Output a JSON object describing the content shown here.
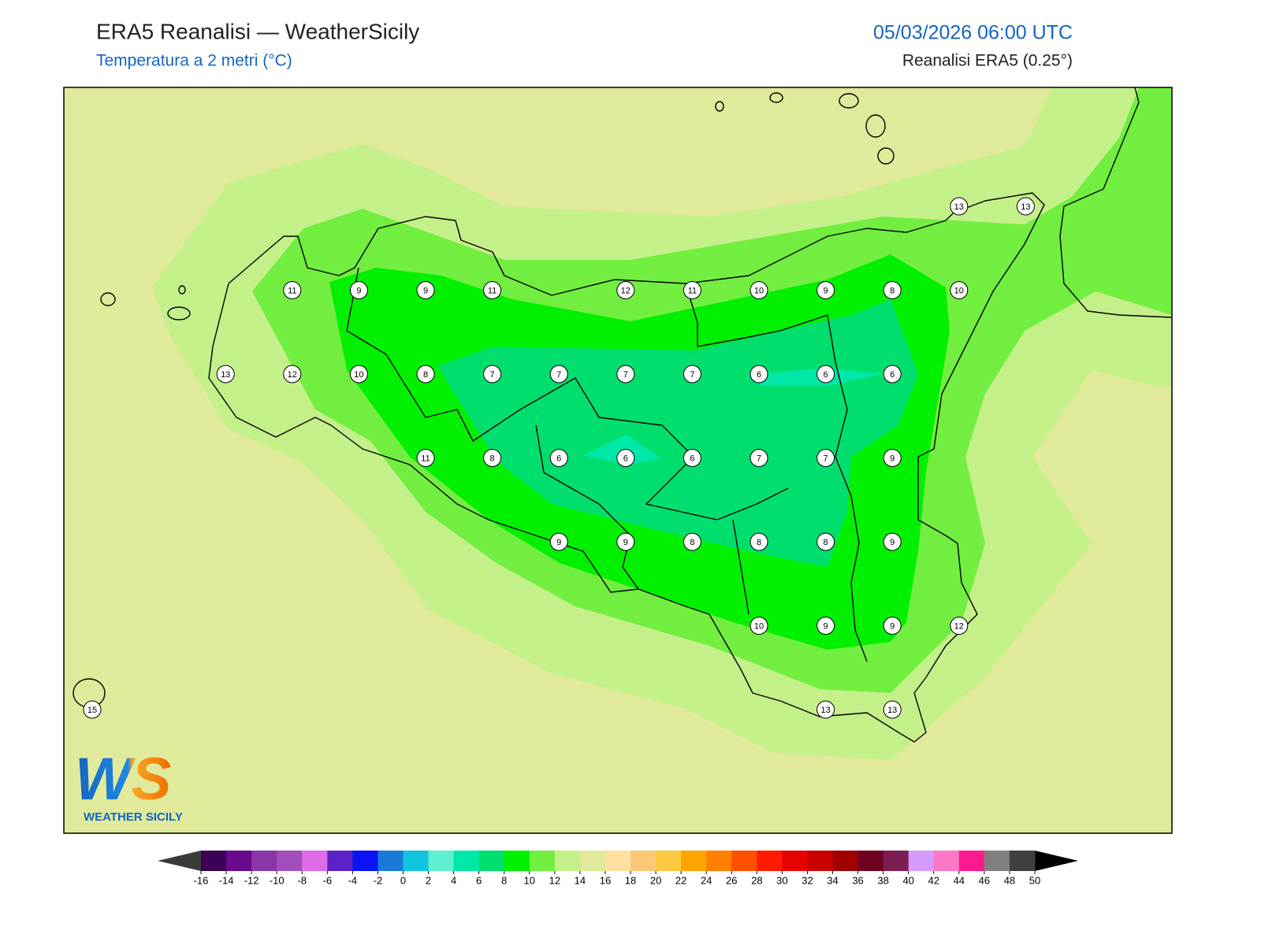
{
  "header": {
    "title": "ERA5 Reanalisi — WeatherSicily",
    "subtitle": "Temperatura a 2 metri (°C)",
    "datetime": "05/03/2026 06:00 UTC",
    "source": "Reanalisi ERA5 (0.25°)"
  },
  "stations": {
    "rows": [
      [
        null,
        null,
        null,
        null,
        null,
        null,
        null,
        null,
        null,
        null,
        null,
        null,
        null,
        13,
        13
      ],
      [
        null,
        null,
        null,
        11,
        9,
        9,
        11,
        null,
        12,
        11,
        10,
        9,
        8,
        10,
        null
      ],
      [
        null,
        null,
        13,
        12,
        10,
        8,
        7,
        7,
        7,
        7,
        6,
        6,
        6,
        null,
        null
      ],
      [
        null,
        null,
        null,
        null,
        null,
        11,
        8,
        6,
        6,
        6,
        7,
        7,
        9,
        null,
        null
      ],
      [
        null,
        null,
        null,
        null,
        null,
        null,
        null,
        9,
        9,
        8,
        8,
        8,
        9,
        null,
        null
      ],
      [
        null,
        null,
        null,
        null,
        null,
        null,
        null,
        null,
        null,
        null,
        10,
        9,
        9,
        12,
        null
      ],
      [
        15,
        null,
        null,
        null,
        null,
        null,
        null,
        null,
        null,
        null,
        null,
        13,
        13,
        null,
        null
      ]
    ]
  },
  "colorbar": {
    "ticks": [
      -16,
      -14,
      -12,
      -10,
      -8,
      -6,
      -4,
      -2,
      0,
      2,
      4,
      6,
      8,
      10,
      12,
      14,
      16,
      18,
      20,
      22,
      24,
      26,
      28,
      30,
      32,
      34,
      36,
      38,
      40,
      42,
      44,
      46,
      48,
      50
    ],
    "colors": [
      "#3c0055",
      "#6a0a8c",
      "#8a35a8",
      "#a24fbb",
      "#e06be8",
      "#5a22c8",
      "#0a14f5",
      "#1a7ad8",
      "#10c4e0",
      "#5ef0d0",
      "#00e8a8",
      "#00de6e",
      "#00f000",
      "#72ee40",
      "#c4f08a",
      "#e0ea9a",
      "#ffe0a0",
      "#fcc878",
      "#fcca40",
      "#ffa500",
      "#ff7f00",
      "#ff5000",
      "#ff1a00",
      "#e60000",
      "#c80000",
      "#a00000",
      "#6e0020",
      "#7a2050",
      "#d89aff",
      "#ff78c8",
      "#ff1a90",
      "#808080",
      "#404040"
    ],
    "under": "#3a3a3a",
    "over": "#000000"
  },
  "logo": {
    "mark": "WS",
    "text": "WEATHER SICILY"
  }
}
